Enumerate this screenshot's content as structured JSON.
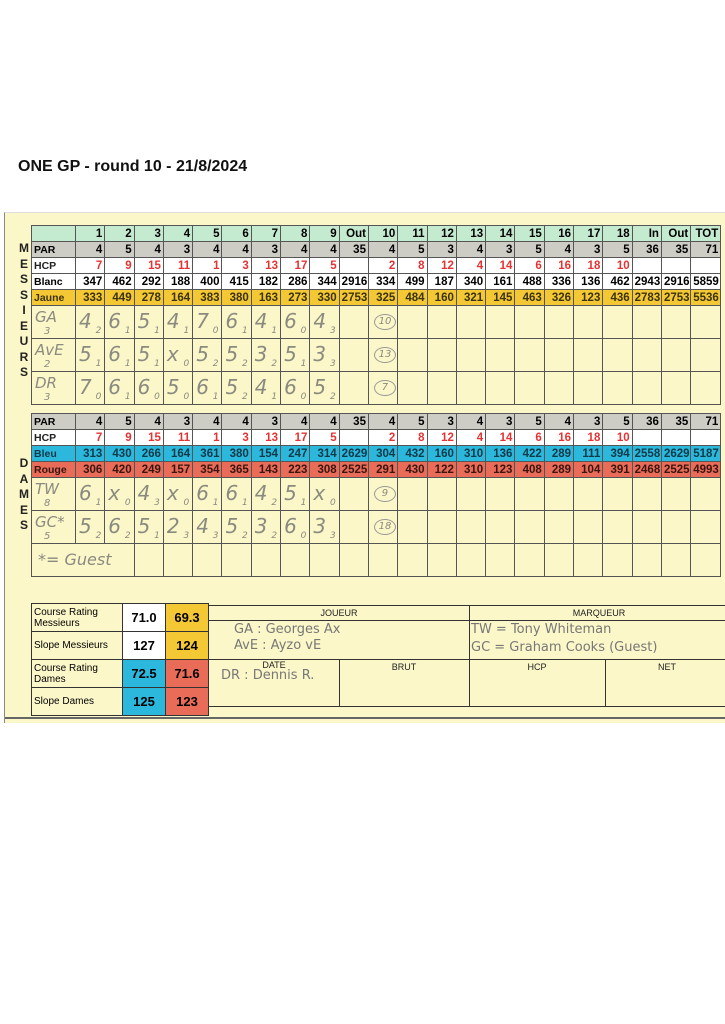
{
  "title": "ONE GP - round 10 - 21/8/2024",
  "side_labels": {
    "men": "MESSIEURS",
    "women": "DAMES"
  },
  "colors": {
    "card": "#fbf7c9",
    "hole_header": "#c4ead0",
    "par": "#cdcdc6",
    "hcp_red": "#e53232",
    "jaune": "#f4c834",
    "bleu": "#2cb7dc",
    "rouge": "#e86c58"
  },
  "holes": [
    "",
    "1",
    "2",
    "3",
    "4",
    "5",
    "6",
    "7",
    "8",
    "9",
    "Out",
    "10",
    "11",
    "12",
    "13",
    "14",
    "15",
    "16",
    "17",
    "18",
    "In",
    "Out",
    "TOT"
  ],
  "men": {
    "rows": [
      {
        "cls": "par",
        "cells": [
          "PAR",
          "4",
          "5",
          "4",
          "3",
          "4",
          "4",
          "3",
          "4",
          "4",
          "35",
          "4",
          "5",
          "3",
          "4",
          "3",
          "5",
          "4",
          "3",
          "5",
          "36",
          "35",
          "71"
        ]
      },
      {
        "cls": "hcp",
        "cells": [
          "HCP",
          "7",
          "9",
          "15",
          "11",
          "1",
          "3",
          "13",
          "17",
          "5",
          "",
          "2",
          "8",
          "12",
          "4",
          "14",
          "6",
          "16",
          "18",
          "10",
          "",
          "",
          ""
        ]
      },
      {
        "cls": "blanc",
        "cells": [
          "Blanc",
          "347",
          "462",
          "292",
          "188",
          "400",
          "415",
          "182",
          "286",
          "344",
          "2916",
          "334",
          "499",
          "187",
          "340",
          "161",
          "488",
          "336",
          "136",
          "462",
          "2943",
          "2916",
          "5859"
        ]
      },
      {
        "cls": "jaune",
        "cells": [
          "Jaune",
          "333",
          "449",
          "278",
          "164",
          "383",
          "380",
          "163",
          "273",
          "330",
          "2753",
          "325",
          "484",
          "160",
          "321",
          "145",
          "463",
          "326",
          "123",
          "436",
          "2783",
          "2753",
          "5536"
        ]
      }
    ],
    "players": [
      {
        "name": "GA",
        "hcp": "3",
        "total": "10",
        "scores": [
          [
            "4",
            "2"
          ],
          [
            "6",
            "1"
          ],
          [
            "5",
            "1"
          ],
          [
            "4",
            "1"
          ],
          [
            "7",
            "0"
          ],
          [
            "6",
            "1"
          ],
          [
            "4",
            "1"
          ],
          [
            "6",
            "0"
          ],
          [
            "4",
            "3"
          ]
        ]
      },
      {
        "name": "AvE",
        "hcp": "2",
        "total": "13",
        "scores": [
          [
            "5",
            "1"
          ],
          [
            "6",
            "1"
          ],
          [
            "5",
            "1"
          ],
          [
            "x",
            "0"
          ],
          [
            "5",
            "2"
          ],
          [
            "5",
            "2"
          ],
          [
            "3",
            "2"
          ],
          [
            "5",
            "1"
          ],
          [
            "3",
            "3"
          ]
        ]
      },
      {
        "name": "DR",
        "hcp": "3",
        "total": "7",
        "scores": [
          [
            "7",
            "0"
          ],
          [
            "6",
            "1"
          ],
          [
            "6",
            "0"
          ],
          [
            "5",
            "0"
          ],
          [
            "6",
            "1"
          ],
          [
            "5",
            "2"
          ],
          [
            "4",
            "1"
          ],
          [
            "6",
            "0"
          ],
          [
            "5",
            "2"
          ]
        ]
      }
    ]
  },
  "women": {
    "rows": [
      {
        "cls": "par",
        "cells": [
          "PAR",
          "4",
          "5",
          "4",
          "3",
          "4",
          "4",
          "3",
          "4",
          "4",
          "35",
          "4",
          "5",
          "3",
          "4",
          "3",
          "5",
          "4",
          "3",
          "5",
          "36",
          "35",
          "71"
        ]
      },
      {
        "cls": "hcp",
        "cells": [
          "HCP",
          "7",
          "9",
          "15",
          "11",
          "1",
          "3",
          "13",
          "17",
          "5",
          "",
          "2",
          "8",
          "12",
          "4",
          "14",
          "6",
          "16",
          "18",
          "10",
          "",
          "",
          ""
        ]
      },
      {
        "cls": "bleu",
        "cells": [
          "Bleu",
          "313",
          "430",
          "266",
          "164",
          "361",
          "380",
          "154",
          "247",
          "314",
          "2629",
          "304",
          "432",
          "160",
          "310",
          "136",
          "422",
          "289",
          "111",
          "394",
          "2558",
          "2629",
          "5187"
        ]
      },
      {
        "cls": "rouge",
        "cells": [
          "Rouge",
          "306",
          "420",
          "249",
          "157",
          "354",
          "365",
          "143",
          "223",
          "308",
          "2525",
          "291",
          "430",
          "122",
          "310",
          "123",
          "408",
          "289",
          "104",
          "391",
          "2468",
          "2525",
          "4993"
        ]
      }
    ],
    "players": [
      {
        "name": "TW",
        "hcp": "8",
        "total": "9",
        "scores": [
          [
            "6",
            "1"
          ],
          [
            "x",
            "0"
          ],
          [
            "4",
            "3"
          ],
          [
            "x",
            "0"
          ],
          [
            "6",
            "1"
          ],
          [
            "6",
            "1"
          ],
          [
            "4",
            "2"
          ],
          [
            "5",
            "1"
          ],
          [
            "x",
            "0"
          ]
        ]
      },
      {
        "name": "GC*",
        "hcp": "5",
        "total": "18",
        "scores": [
          [
            "5",
            "2"
          ],
          [
            "6",
            "2"
          ],
          [
            "5",
            "1"
          ],
          [
            "2",
            "3"
          ],
          [
            "4",
            "3"
          ],
          [
            "5",
            "2"
          ],
          [
            "3",
            "2"
          ],
          [
            "6",
            "0"
          ],
          [
            "3",
            "3"
          ]
        ]
      }
    ],
    "note": "*= Guest"
  },
  "ratings": [
    {
      "label": "Course Rating Messieurs",
      "v1": "71.0",
      "v2": "69.3",
      "c1": "#ffffff",
      "c2": "#f4c834"
    },
    {
      "label": "Slope Messieurs",
      "v1": "127",
      "v2": "124",
      "c1": "#ffffff",
      "c2": "#f4c834"
    },
    {
      "label": "Course Rating Dames",
      "v1": "72.5",
      "v2": "71.6",
      "c1": "#2cb7dc",
      "c2": "#e86c58"
    },
    {
      "label": "Slope Dames",
      "v1": "125",
      "v2": "123",
      "c1": "#2cb7dc",
      "c2": "#e86c58"
    }
  ],
  "players_box": {
    "joueur": "JOUEUR",
    "marqueur": "MARQUEUR",
    "date": "DATE",
    "brut": "BRUT",
    "hcp": "HCP",
    "net": "NET",
    "legend": [
      "GA : Georges Ax",
      "AvE : Ayzo vE",
      "DR : Dennis R.",
      "TW = Tony Whiteman",
      "GC = Graham Cooks (Guest)"
    ]
  }
}
